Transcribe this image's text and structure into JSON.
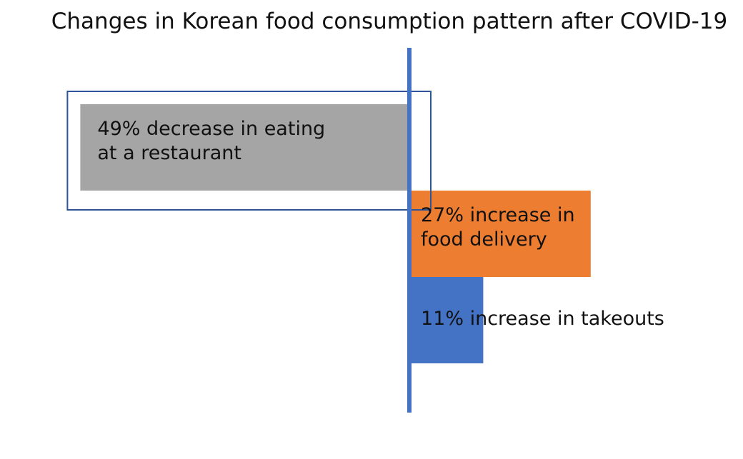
{
  "chart_data": {
    "type": "bar",
    "orientation": "horizontal-diverging",
    "title": "Changes in Korean food consumption pattern after COVID-19",
    "xlabel": "",
    "ylabel": "",
    "grid": false,
    "legend": "none",
    "categories": [
      "eating at a restaurant",
      "food delivery",
      "takeouts"
    ],
    "values": [
      -49,
      27,
      11
    ],
    "unit": "%",
    "labels": [
      "49% decrease in eating\nat a restaurant",
      "27% increase in\nfood delivery",
      "11% increase in takeouts"
    ],
    "colors": [
      "#a5a5a5",
      "#ed7d31",
      "#4472c4"
    ],
    "axis_color": "#4472c4",
    "highlighted_category": "eating at a restaurant",
    "highlight_color": "#2f5597"
  }
}
